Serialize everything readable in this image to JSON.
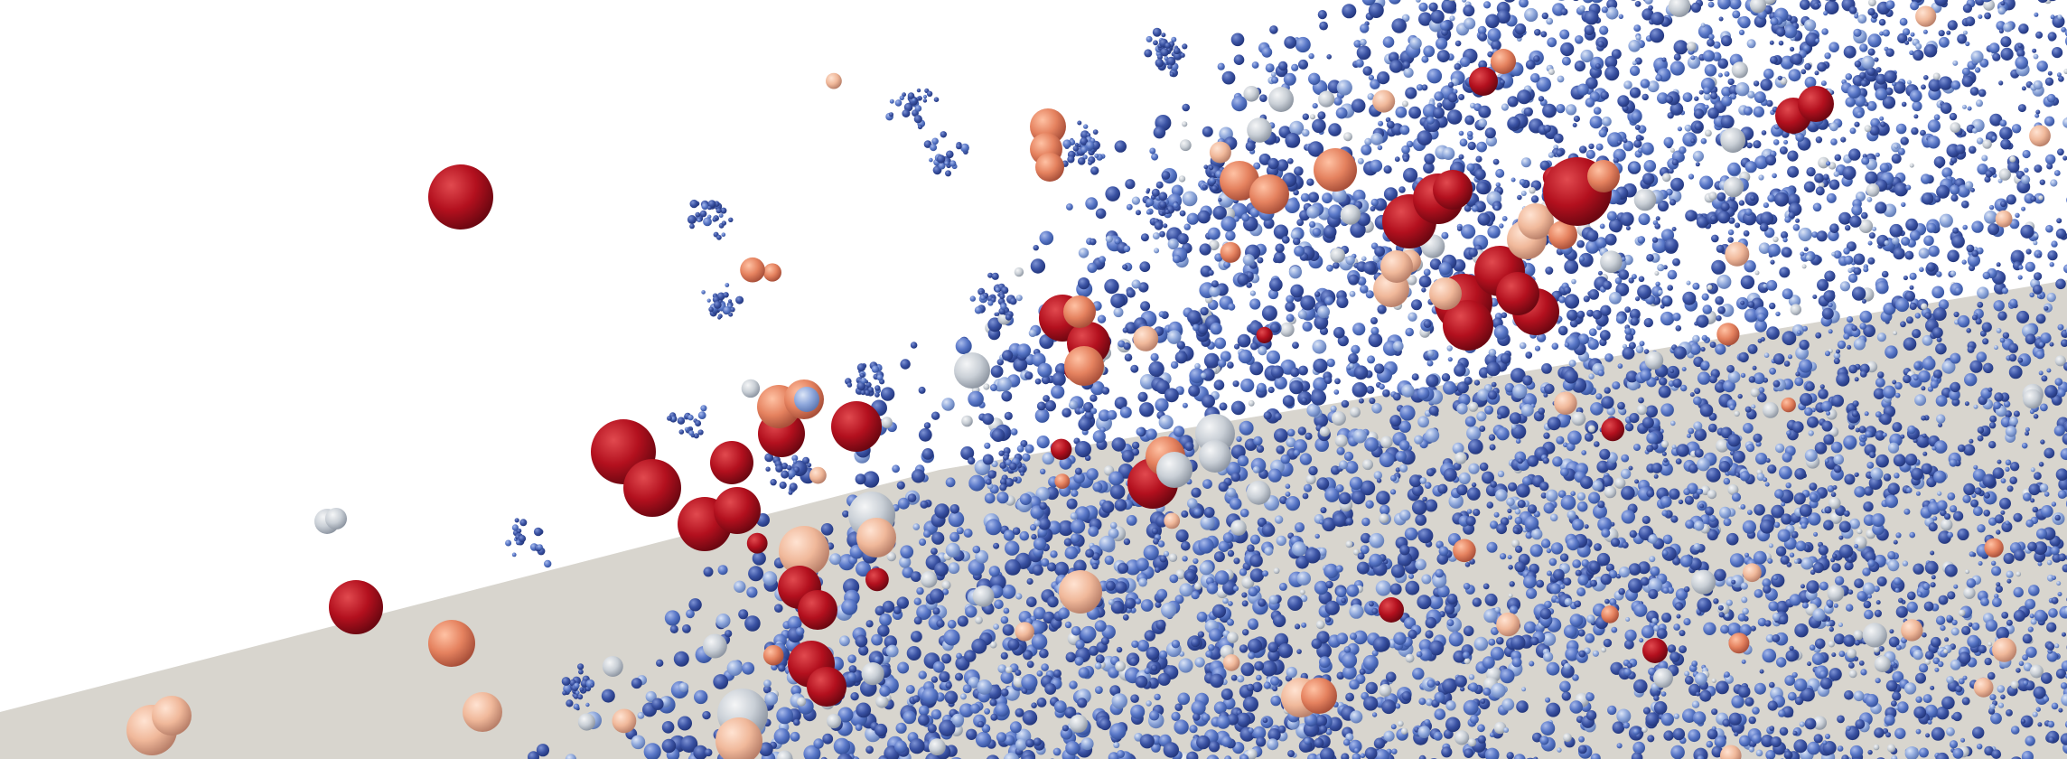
{
  "scene": {
    "background": "#ffffff",
    "floor_color": "#d8d5ce",
    "palette": {
      "deep_blue": "#3b53a4",
      "blue": "#5a78c8",
      "light_blue": "#8fa8dc",
      "pale": "#c9cfd6",
      "peach": "#f0b89a",
      "orange": "#e5825f",
      "red": "#b3101e",
      "dark_red": "#7d0a14"
    }
  }
}
